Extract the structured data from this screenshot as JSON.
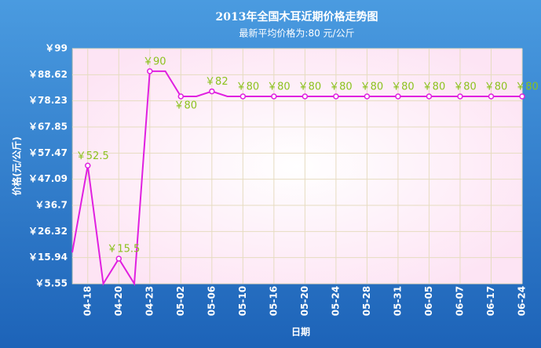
{
  "chart_data": {
    "type": "line",
    "title": "2013年全国木耳近期价格走势图",
    "subtitle": "最新平均价格为:80 元/公斤",
    "x_label": "日期",
    "y_label": "价格(元/公斤)",
    "categories": [
      null,
      "04-18",
      null,
      "04-20",
      null,
      "04-23",
      null,
      "05-02",
      null,
      "05-06",
      null,
      "05-10",
      null,
      "05-16",
      null,
      "05-20",
      null,
      "05-24",
      null,
      "05-28",
      null,
      "05-31",
      null,
      "06-05",
      null,
      "06-07",
      null,
      "06-17",
      null,
      "06-24"
    ],
    "series": [
      {
        "color": "#e020e0",
        "values": [
          18,
          52.5,
          5.55,
          15.5,
          5.55,
          90,
          90,
          80,
          80,
          82,
          80,
          80,
          80,
          80,
          80,
          80,
          80,
          80,
          80,
          80,
          80,
          80,
          80,
          80,
          80,
          80,
          80,
          80,
          80,
          80
        ],
        "value_labels": [
          null,
          "￥52.5",
          null,
          "￥15.5",
          null,
          "￥90",
          null,
          "￥80",
          null,
          "￥82",
          null,
          "￥80",
          null,
          "￥80",
          null,
          "￥80",
          null,
          "￥80",
          null,
          "￥80",
          null,
          "￥80",
          null,
          "￥80",
          null,
          "￥80",
          null,
          "￥80",
          null,
          "￥80"
        ]
      }
    ],
    "ylim": [
      5.55,
      99
    ],
    "yticks": [
      {
        "value": 5.55,
        "label": "￥5.55"
      },
      {
        "value": 15.94,
        "label": "￥15.94"
      },
      {
        "value": 26.32,
        "label": "￥26.32"
      },
      {
        "value": 36.7,
        "label": "￥36.7"
      },
      {
        "value": 47.09,
        "label": "￥47.09"
      },
      {
        "value": 57.47,
        "label": "￥57.47"
      },
      {
        "value": 67.85,
        "label": "￥67.85"
      },
      {
        "value": 78.23,
        "label": "￥78.23"
      },
      {
        "value": 88.62,
        "label": "￥88.62"
      },
      {
        "value": 99,
        "label": "￥99"
      }
    ],
    "grid": true,
    "label_color": "#8cc21e"
  }
}
